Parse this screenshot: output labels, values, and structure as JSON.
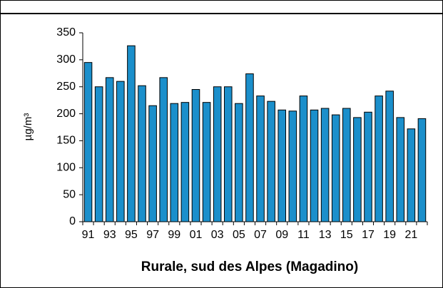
{
  "chart_data": {
    "type": "bar",
    "title": "Rurale, sud des Alpes (Magadino)",
    "y_label": "µg/m³",
    "categories": [
      "91",
      null,
      "93",
      null,
      "95",
      null,
      "97",
      null,
      "99",
      null,
      "01",
      null,
      "03",
      null,
      "05",
      null,
      "07",
      null,
      "09",
      null,
      "11",
      null,
      "13",
      null,
      "15",
      null,
      "17",
      null,
      "19",
      null,
      "21",
      null
    ],
    "values": [
      295,
      250,
      267,
      260,
      326,
      252,
      215,
      267,
      219,
      221,
      245,
      221,
      250,
      250,
      219,
      274,
      233,
      223,
      207,
      205,
      233,
      207,
      210,
      198,
      210,
      193,
      203,
      233,
      242,
      193,
      172,
      191
    ],
    "color": "#1b8fcb",
    "ylim": [
      0,
      350
    ],
    "yticks": [
      0,
      50,
      100,
      150,
      200,
      250,
      300,
      350
    ],
    "grid": false
  }
}
